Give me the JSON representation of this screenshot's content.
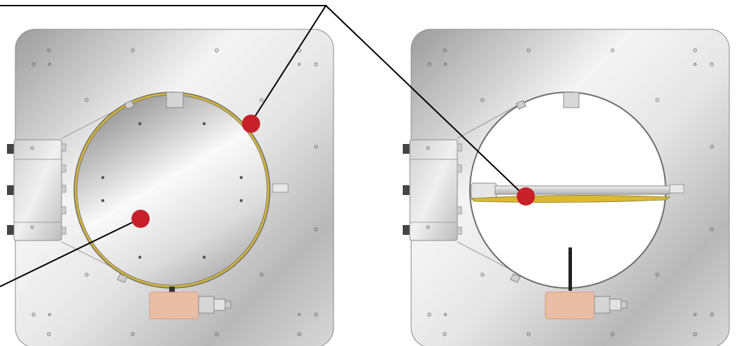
{
  "figure": {
    "panels": [
      {
        "state": "closed",
        "hole_count": 14
      },
      {
        "state": "open",
        "hole_count": 14
      }
    ],
    "colors": {
      "background": "#ffffff",
      "plate_light": "#f6f6f6",
      "plate_dark": "#9a9a9a",
      "seal": "#d9b933",
      "marker": "#c8202a",
      "connector": "#e9bea4",
      "leader_line": "#000000",
      "outline": "#6e6e6e"
    },
    "markers": [
      {
        "id": "seal-ring-marker"
      },
      {
        "id": "closed-disc-marker"
      },
      {
        "id": "open-blade-marker"
      }
    ]
  }
}
